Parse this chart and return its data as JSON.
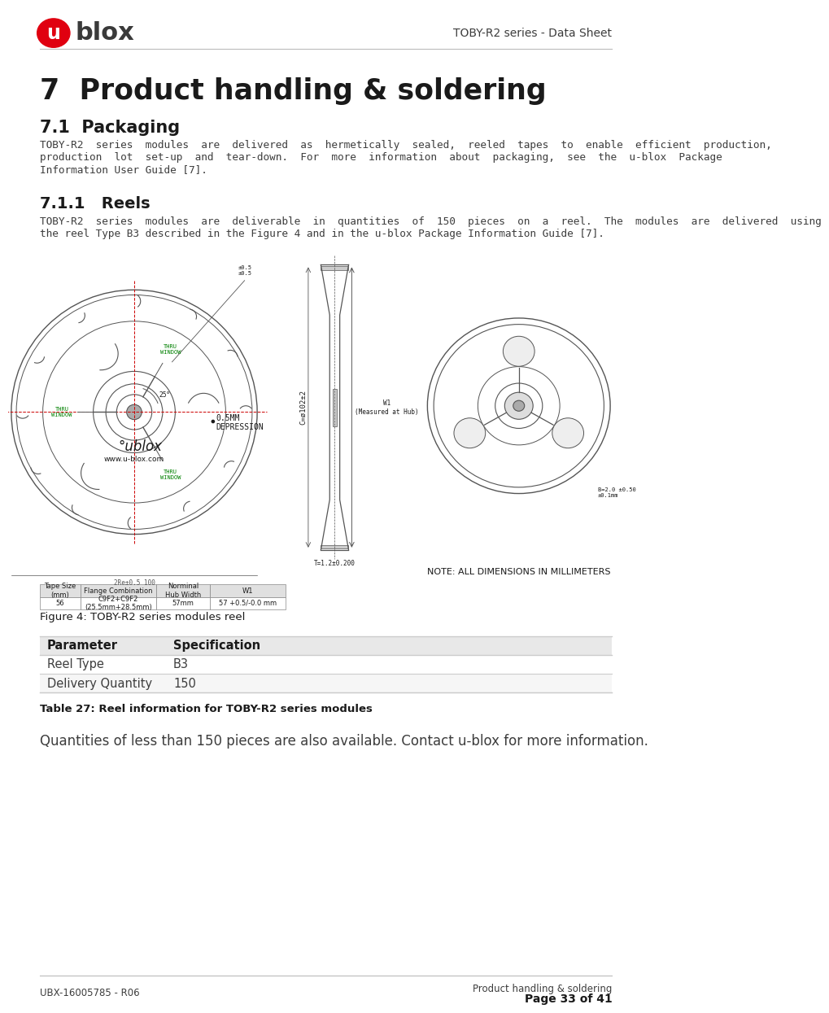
{
  "bg_color": "#ffffff",
  "header_right_text": "TOBY-R2 series - Data Sheet",
  "section_title": "7  Product handling & soldering",
  "subsection_title": "7.1  Packaging",
  "body_text_1_lines": [
    "TOBY-R2  series  modules  are  delivered  as  hermetically  sealed,  reeled  tapes  to  enable  efficient  production,",
    "production  lot  set-up  and  tear-down.  For  more  information  about  packaging,  see  the  u-blox  Package",
    "Information User Guide [7]."
  ],
  "subsection2_title": "7.1.1   Reels",
  "body_text_2_lines": [
    "TOBY-R2  series  modules  are  deliverable  in  quantities  of  150  pieces  on  a  reel.  The  modules  are  delivered  using",
    "the reel Type B3 described in the Figure 4 and in the u-blox Package Information Guide [7]."
  ],
  "figure_caption": "Figure 4: TOBY-R2 series modules reel",
  "note_text": "NOTE: ALL DIMENSIONS IN MILLIMETERS",
  "table_header": [
    "Parameter",
    "Specification"
  ],
  "table_rows": [
    [
      "Reel Type",
      "B3"
    ],
    [
      "Delivery Quantity",
      "150"
    ]
  ],
  "table_caption": "Table 27: Reel information for TOBY-R2 series modules",
  "final_note": "Quantities of less than 150 pieces are also available. Contact u-blox for more information.",
  "footer_left": "UBX-16005785 - R06",
  "footer_right1": "Product handling & soldering",
  "footer_right2": "Page 33 of 41",
  "text_color": "#3d3d3d",
  "dark_color": "#1a1a1a",
  "red_color": "#cc0000",
  "green_color": "#008000",
  "line_color": "#555555",
  "table_header_bg": "#e8e8e8",
  "table_border_color": "#cccccc",
  "separator_color": "#bbbbbb"
}
